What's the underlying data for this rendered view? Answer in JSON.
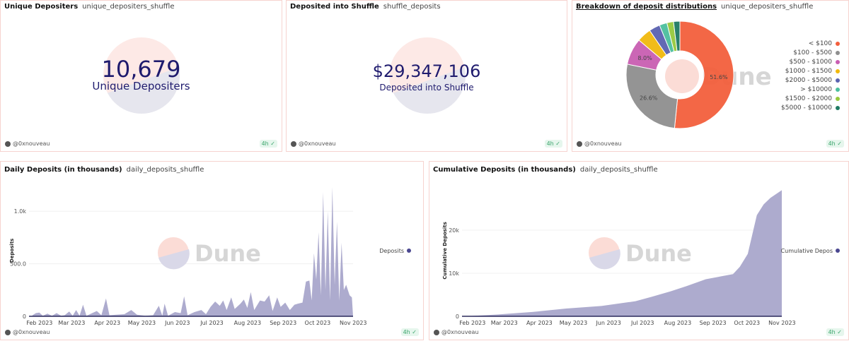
{
  "panels": {
    "unique": {
      "title": "Unique Depositers",
      "query": "unique_depositers_shuffle",
      "value": "10,679",
      "label": "Unique Depositers",
      "author": "@0xnouveau",
      "age": "4h"
    },
    "deposited": {
      "title": "Deposited into Shuffle",
      "query": "shuffle_deposits",
      "value": "$29,347,106",
      "label": "Deposited into Shuffle",
      "author": "@0xnouveau",
      "age": "4h"
    },
    "breakdown": {
      "title": "Breakdown of deposit distributions",
      "query": "unique_depositers_shuffle",
      "author": "@0xnouveau",
      "age": "4h",
      "watermark": "Dune"
    },
    "daily": {
      "title": "Daily Deposits (in thousands)",
      "query": "daily_deposits_shuffle",
      "author": "@0xnouveau",
      "age": "4h",
      "watermark": "Dune"
    },
    "cumulative": {
      "title": "Cumulative Deposits (in thousands)",
      "query": "daily_deposits_shuffle",
      "author": "@0xnouveau",
      "age": "4h",
      "watermark": "Dune"
    }
  },
  "chart_data": [
    {
      "type": "pie",
      "donut": true,
      "legend_position": "right",
      "slices": [
        {
          "label": "< $100",
          "value": 51.6,
          "color": "#f35f3d",
          "data_label": "51.6%"
        },
        {
          "label": "$100 - $500",
          "value": 26.6,
          "color": "#8f8f8f",
          "data_label": "26.6%"
        },
        {
          "label": "$500 - $1000",
          "value": 8.0,
          "color": "#c95eb2",
          "data_label": "8.0%"
        },
        {
          "label": "$1000 - $1500",
          "value": 4.3,
          "color": "#f1b90d",
          "data_label": ""
        },
        {
          "label": "$2000 - $5000",
          "value": 3.3,
          "color": "#5a62b0",
          "data_label": ""
        },
        {
          "label": "> $10000",
          "value": 2.3,
          "color": "#4bbf9e",
          "data_label": ""
        },
        {
          "label": "$1500 - $2000",
          "value": 2.0,
          "color": "#97c93d",
          "data_label": ""
        },
        {
          "label": "$5000 - $10000",
          "value": 1.9,
          "color": "#1f7a63",
          "data_label": ""
        }
      ]
    },
    {
      "type": "area",
      "ylabel": "Deposits",
      "ylim": [
        0,
        1250
      ],
      "yticks": [
        {
          "v": 0,
          "l": "0"
        },
        {
          "v": 500,
          "l": "500.0"
        },
        {
          "v": 1000,
          "l": "1.0k"
        }
      ],
      "xticks": [
        {
          "d": "2023-02-01",
          "l": "Feb 2023"
        },
        {
          "d": "2023-03-01",
          "l": "Mar 2023"
        },
        {
          "d": "2023-04-01",
          "l": "Apr 2023"
        },
        {
          "d": "2023-05-01",
          "l": "May 2023"
        },
        {
          "d": "2023-06-01",
          "l": "Jun 2023"
        },
        {
          "d": "2023-07-01",
          "l": "Jul 2023"
        },
        {
          "d": "2023-08-01",
          "l": "Aug 2023"
        },
        {
          "d": "2023-09-01",
          "l": "Sep 2023"
        },
        {
          "d": "2023-10-01",
          "l": "Oct 2023"
        },
        {
          "d": "2023-11-01",
          "l": "Nov 2023"
        }
      ],
      "xrange": [
        "2023-01-29",
        "2023-11-07"
      ],
      "grid": true,
      "legend_position": "right",
      "color": "#a9a7cb",
      "series": [
        {
          "name": "Deposits",
          "points": [
            [
              "2023-02-01",
              10
            ],
            [
              "2023-02-04",
              30
            ],
            [
              "2023-02-07",
              35
            ],
            [
              "2023-02-10",
              5
            ],
            [
              "2023-02-14",
              25
            ],
            [
              "2023-02-18",
              5
            ],
            [
              "2023-02-22",
              30
            ],
            [
              "2023-02-26",
              5
            ],
            [
              "2023-03-01",
              10
            ],
            [
              "2023-03-05",
              45
            ],
            [
              "2023-03-08",
              5
            ],
            [
              "2023-03-11",
              60
            ],
            [
              "2023-03-14",
              5
            ],
            [
              "2023-03-17",
              110
            ],
            [
              "2023-03-20",
              5
            ],
            [
              "2023-03-25",
              30
            ],
            [
              "2023-03-29",
              50
            ],
            [
              "2023-04-02",
              10
            ],
            [
              "2023-04-06",
              170
            ],
            [
              "2023-04-09",
              10
            ],
            [
              "2023-04-15",
              15
            ],
            [
              "2023-04-22",
              20
            ],
            [
              "2023-04-28",
              60
            ],
            [
              "2023-05-03",
              15
            ],
            [
              "2023-05-10",
              5
            ],
            [
              "2023-05-17",
              10
            ],
            [
              "2023-05-22",
              100
            ],
            [
              "2023-05-25",
              5
            ],
            [
              "2023-05-27",
              120
            ],
            [
              "2023-05-30",
              5
            ],
            [
              "2023-06-05",
              40
            ],
            [
              "2023-06-10",
              30
            ],
            [
              "2023-06-13",
              190
            ],
            [
              "2023-06-16",
              10
            ],
            [
              "2023-06-22",
              40
            ],
            [
              "2023-06-28",
              60
            ],
            [
              "2023-07-02",
              20
            ],
            [
              "2023-07-06",
              90
            ],
            [
              "2023-07-10",
              140
            ],
            [
              "2023-07-14",
              100
            ],
            [
              "2023-07-17",
              150
            ],
            [
              "2023-07-20",
              60
            ],
            [
              "2023-07-24",
              180
            ],
            [
              "2023-07-27",
              70
            ],
            [
              "2023-08-01",
              120
            ],
            [
              "2023-08-04",
              160
            ],
            [
              "2023-08-07",
              80
            ],
            [
              "2023-08-10",
              230
            ],
            [
              "2023-08-13",
              60
            ],
            [
              "2023-08-18",
              150
            ],
            [
              "2023-08-22",
              140
            ],
            [
              "2023-08-26",
              200
            ],
            [
              "2023-08-29",
              50
            ],
            [
              "2023-09-02",
              180
            ],
            [
              "2023-09-05",
              90
            ],
            [
              "2023-09-09",
              130
            ],
            [
              "2023-09-13",
              60
            ],
            [
              "2023-09-17",
              110
            ],
            [
              "2023-09-20",
              120
            ],
            [
              "2023-09-24",
              130
            ],
            [
              "2023-09-27",
              330
            ],
            [
              "2023-09-30",
              340
            ],
            [
              "2023-10-02",
              150
            ],
            [
              "2023-10-04",
              600
            ],
            [
              "2023-10-06",
              350
            ],
            [
              "2023-10-08",
              800
            ],
            [
              "2023-10-10",
              200
            ],
            [
              "2023-10-12",
              1180
            ],
            [
              "2023-10-14",
              250
            ],
            [
              "2023-10-16",
              1000
            ],
            [
              "2023-10-18",
              150
            ],
            [
              "2023-10-20",
              1230
            ],
            [
              "2023-10-22",
              300
            ],
            [
              "2023-10-24",
              900
            ],
            [
              "2023-10-26",
              150
            ],
            [
              "2023-10-28",
              700
            ],
            [
              "2023-10-30",
              250
            ],
            [
              "2023-11-01",
              300
            ],
            [
              "2023-11-04",
              200
            ],
            [
              "2023-11-06",
              180
            ],
            [
              "2023-11-07",
              0
            ]
          ]
        }
      ]
    },
    {
      "type": "area",
      "ylabel": "Cumulative Deposits",
      "ylim": [
        0,
        30500
      ],
      "yticks": [
        {
          "v": 0,
          "l": "0"
        },
        {
          "v": 10000,
          "l": "10k"
        },
        {
          "v": 20000,
          "l": "20k"
        }
      ],
      "xticks": [
        {
          "d": "2023-02-01",
          "l": "Feb 2023"
        },
        {
          "d": "2023-03-01",
          "l": "Mar 2023"
        },
        {
          "d": "2023-04-01",
          "l": "Apr 2023"
        },
        {
          "d": "2023-05-01",
          "l": "May 2023"
        },
        {
          "d": "2023-06-01",
          "l": "Jun 2023"
        },
        {
          "d": "2023-07-01",
          "l": "Jul 2023"
        },
        {
          "d": "2023-08-01",
          "l": "Aug 2023"
        },
        {
          "d": "2023-09-01",
          "l": "Sep 2023"
        },
        {
          "d": "2023-10-01",
          "l": "Oct 2023"
        },
        {
          "d": "2023-11-01",
          "l": "Nov 2023"
        }
      ],
      "xrange": [
        "2023-01-29",
        "2023-11-07"
      ],
      "grid": true,
      "legend_position": "right",
      "color": "#a9a7cb",
      "series": [
        {
          "name": "Cumulative Depos",
          "points": [
            [
              "2023-02-01",
              0
            ],
            [
              "2023-03-01",
              400
            ],
            [
              "2023-04-01",
              1000
            ],
            [
              "2023-05-01",
              1800
            ],
            [
              "2023-06-01",
              2400
            ],
            [
              "2023-07-01",
              3500
            ],
            [
              "2023-07-15",
              4500
            ],
            [
              "2023-08-01",
              5800
            ],
            [
              "2023-08-15",
              7000
            ],
            [
              "2023-09-01",
              8600
            ],
            [
              "2023-09-25",
              9800
            ],
            [
              "2023-10-01",
              11500
            ],
            [
              "2023-10-08",
              14500
            ],
            [
              "2023-10-12",
              19000
            ],
            [
              "2023-10-16",
              23500
            ],
            [
              "2023-10-22",
              26000
            ],
            [
              "2023-10-28",
              27500
            ],
            [
              "2023-11-07",
              29300
            ]
          ]
        }
      ]
    }
  ]
}
